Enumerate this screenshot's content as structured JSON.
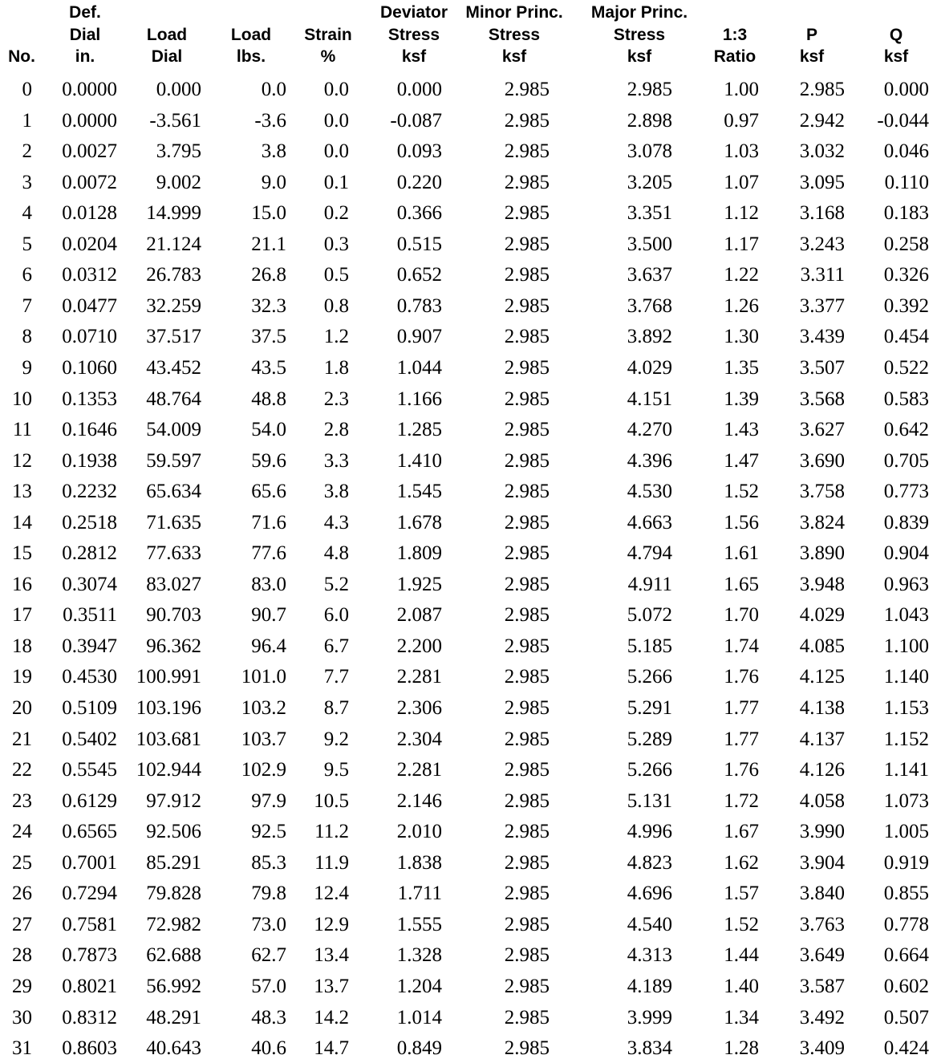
{
  "table": {
    "headers": [
      [
        "",
        "",
        "No."
      ],
      [
        "Def.",
        "Dial",
        "in."
      ],
      [
        "",
        "Load",
        "Dial"
      ],
      [
        "",
        "Load",
        "lbs."
      ],
      [
        "",
        "Strain",
        "%"
      ],
      [
        "Deviator",
        "Stress",
        "ksf"
      ],
      [
        "Minor Princ.",
        "Stress",
        "ksf"
      ],
      [
        "Major Princ.",
        "Stress",
        "ksf"
      ],
      [
        "",
        "1:3",
        "Ratio"
      ],
      [
        "",
        "P",
        "ksf"
      ],
      [
        "",
        "Q",
        "ksf"
      ]
    ],
    "rows": [
      [
        "0",
        "0.0000",
        "0.000",
        "0.0",
        "0.0",
        "0.000",
        "2.985",
        "2.985",
        "1.00",
        "2.985",
        "0.000"
      ],
      [
        "1",
        "0.0000",
        "-3.561",
        "-3.6",
        "0.0",
        "-0.087",
        "2.985",
        "2.898",
        "0.97",
        "2.942",
        "-0.044"
      ],
      [
        "2",
        "0.0027",
        "3.795",
        "3.8",
        "0.0",
        "0.093",
        "2.985",
        "3.078",
        "1.03",
        "3.032",
        "0.046"
      ],
      [
        "3",
        "0.0072",
        "9.002",
        "9.0",
        "0.1",
        "0.220",
        "2.985",
        "3.205",
        "1.07",
        "3.095",
        "0.110"
      ],
      [
        "4",
        "0.0128",
        "14.999",
        "15.0",
        "0.2",
        "0.366",
        "2.985",
        "3.351",
        "1.12",
        "3.168",
        "0.183"
      ],
      [
        "5",
        "0.0204",
        "21.124",
        "21.1",
        "0.3",
        "0.515",
        "2.985",
        "3.500",
        "1.17",
        "3.243",
        "0.258"
      ],
      [
        "6",
        "0.0312",
        "26.783",
        "26.8",
        "0.5",
        "0.652",
        "2.985",
        "3.637",
        "1.22",
        "3.311",
        "0.326"
      ],
      [
        "7",
        "0.0477",
        "32.259",
        "32.3",
        "0.8",
        "0.783",
        "2.985",
        "3.768",
        "1.26",
        "3.377",
        "0.392"
      ],
      [
        "8",
        "0.0710",
        "37.517",
        "37.5",
        "1.2",
        "0.907",
        "2.985",
        "3.892",
        "1.30",
        "3.439",
        "0.454"
      ],
      [
        "9",
        "0.1060",
        "43.452",
        "43.5",
        "1.8",
        "1.044",
        "2.985",
        "4.029",
        "1.35",
        "3.507",
        "0.522"
      ],
      [
        "10",
        "0.1353",
        "48.764",
        "48.8",
        "2.3",
        "1.166",
        "2.985",
        "4.151",
        "1.39",
        "3.568",
        "0.583"
      ],
      [
        "11",
        "0.1646",
        "54.009",
        "54.0",
        "2.8",
        "1.285",
        "2.985",
        "4.270",
        "1.43",
        "3.627",
        "0.642"
      ],
      [
        "12",
        "0.1938",
        "59.597",
        "59.6",
        "3.3",
        "1.410",
        "2.985",
        "4.396",
        "1.47",
        "3.690",
        "0.705"
      ],
      [
        "13",
        "0.2232",
        "65.634",
        "65.6",
        "3.8",
        "1.545",
        "2.985",
        "4.530",
        "1.52",
        "3.758",
        "0.773"
      ],
      [
        "14",
        "0.2518",
        "71.635",
        "71.6",
        "4.3",
        "1.678",
        "2.985",
        "4.663",
        "1.56",
        "3.824",
        "0.839"
      ],
      [
        "15",
        "0.2812",
        "77.633",
        "77.6",
        "4.8",
        "1.809",
        "2.985",
        "4.794",
        "1.61",
        "3.890",
        "0.904"
      ],
      [
        "16",
        "0.3074",
        "83.027",
        "83.0",
        "5.2",
        "1.925",
        "2.985",
        "4.911",
        "1.65",
        "3.948",
        "0.963"
      ],
      [
        "17",
        "0.3511",
        "90.703",
        "90.7",
        "6.0",
        "2.087",
        "2.985",
        "5.072",
        "1.70",
        "4.029",
        "1.043"
      ],
      [
        "18",
        "0.3947",
        "96.362",
        "96.4",
        "6.7",
        "2.200",
        "2.985",
        "5.185",
        "1.74",
        "4.085",
        "1.100"
      ],
      [
        "19",
        "0.4530",
        "100.991",
        "101.0",
        "7.7",
        "2.281",
        "2.985",
        "5.266",
        "1.76",
        "4.125",
        "1.140"
      ],
      [
        "20",
        "0.5109",
        "103.196",
        "103.2",
        "8.7",
        "2.306",
        "2.985",
        "5.291",
        "1.77",
        "4.138",
        "1.153"
      ],
      [
        "21",
        "0.5402",
        "103.681",
        "103.7",
        "9.2",
        "2.304",
        "2.985",
        "5.289",
        "1.77",
        "4.137",
        "1.152"
      ],
      [
        "22",
        "0.5545",
        "102.944",
        "102.9",
        "9.5",
        "2.281",
        "2.985",
        "5.266",
        "1.76",
        "4.126",
        "1.141"
      ],
      [
        "23",
        "0.6129",
        "97.912",
        "97.9",
        "10.5",
        "2.146",
        "2.985",
        "5.131",
        "1.72",
        "4.058",
        "1.073"
      ],
      [
        "24",
        "0.6565",
        "92.506",
        "92.5",
        "11.2",
        "2.010",
        "2.985",
        "4.996",
        "1.67",
        "3.990",
        "1.005"
      ],
      [
        "25",
        "0.7001",
        "85.291",
        "85.3",
        "11.9",
        "1.838",
        "2.985",
        "4.823",
        "1.62",
        "3.904",
        "0.919"
      ],
      [
        "26",
        "0.7294",
        "79.828",
        "79.8",
        "12.4",
        "1.711",
        "2.985",
        "4.696",
        "1.57",
        "3.840",
        "0.855"
      ],
      [
        "27",
        "0.7581",
        "72.982",
        "73.0",
        "12.9",
        "1.555",
        "2.985",
        "4.540",
        "1.52",
        "3.763",
        "0.778"
      ],
      [
        "28",
        "0.7873",
        "62.688",
        "62.7",
        "13.4",
        "1.328",
        "2.985",
        "4.313",
        "1.44",
        "3.649",
        "0.664"
      ],
      [
        "29",
        "0.8021",
        "56.992",
        "57.0",
        "13.7",
        "1.204",
        "2.985",
        "4.189",
        "1.40",
        "3.587",
        "0.602"
      ],
      [
        "30",
        "0.8312",
        "48.291",
        "48.3",
        "14.2",
        "1.014",
        "2.985",
        "3.999",
        "1.34",
        "3.492",
        "0.507"
      ],
      [
        "31",
        "0.8603",
        "40.643",
        "40.6",
        "14.7",
        "0.849",
        "2.985",
        "3.834",
        "1.28",
        "3.409",
        "0.424"
      ]
    ]
  }
}
